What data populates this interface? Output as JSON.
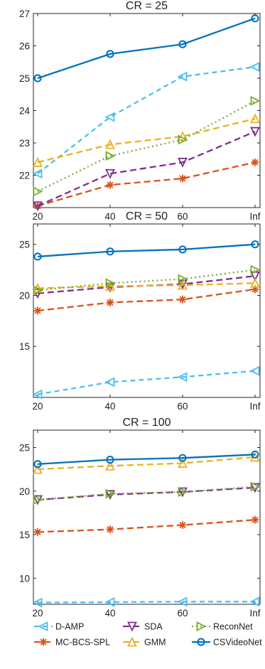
{
  "chart_data": [
    {
      "type": "line",
      "title": "CR = 25",
      "categories": [
        "20",
        "40",
        "60",
        "Inf"
      ],
      "ylim": [
        21,
        27
      ],
      "yticks": [
        22,
        23,
        24,
        25,
        26,
        27
      ],
      "grid": false,
      "series": [
        {
          "name": "D-AMP",
          "values": [
            22.05,
            23.8,
            25.05,
            25.35
          ]
        },
        {
          "name": "MC-BCS-SPL",
          "values": [
            21.05,
            21.7,
            21.9,
            22.4
          ]
        },
        {
          "name": "SDA",
          "values": [
            21.05,
            22.05,
            22.4,
            23.35
          ]
        },
        {
          "name": "GMM",
          "values": [
            22.4,
            22.95,
            23.2,
            23.75
          ]
        },
        {
          "name": "ReconNet",
          "values": [
            21.5,
            22.6,
            23.1,
            24.3
          ]
        },
        {
          "name": "CSVideoNet",
          "values": [
            25.0,
            25.75,
            26.05,
            26.85
          ]
        }
      ]
    },
    {
      "type": "line",
      "title": "CR = 50",
      "categories": [
        "20",
        "40",
        "60",
        "Inf"
      ],
      "ylim": [
        10,
        27
      ],
      "yticks": [
        15,
        20,
        25
      ],
      "grid": false,
      "series": [
        {
          "name": "D-AMP",
          "values": [
            10.3,
            11.5,
            12.0,
            12.6
          ]
        },
        {
          "name": "MC-BCS-SPL",
          "values": [
            18.5,
            19.3,
            19.6,
            20.6
          ]
        },
        {
          "name": "SDA",
          "values": [
            20.2,
            20.8,
            21.1,
            21.9
          ]
        },
        {
          "name": "GMM",
          "values": [
            20.7,
            20.9,
            21.0,
            21.2
          ]
        },
        {
          "name": "ReconNet",
          "values": [
            20.5,
            21.2,
            21.6,
            22.5
          ]
        },
        {
          "name": "CSVideoNet",
          "values": [
            23.8,
            24.3,
            24.5,
            25.0
          ]
        }
      ]
    },
    {
      "type": "line",
      "title": "CR = 100",
      "categories": [
        "20",
        "40",
        "60",
        "Inf"
      ],
      "ylim": [
        7,
        27
      ],
      "yticks": [
        10,
        15,
        20,
        25
      ],
      "grid": false,
      "series": [
        {
          "name": "D-AMP",
          "values": [
            7.2,
            7.25,
            7.3,
            7.3
          ]
        },
        {
          "name": "MC-BCS-SPL",
          "values": [
            15.3,
            15.6,
            16.1,
            16.7
          ]
        },
        {
          "name": "SDA",
          "values": [
            19.0,
            19.6,
            19.9,
            20.4
          ]
        },
        {
          "name": "GMM",
          "values": [
            22.5,
            22.9,
            23.2,
            23.9
          ]
        },
        {
          "name": "ReconNet",
          "values": [
            19.0,
            19.7,
            19.9,
            20.5
          ]
        },
        {
          "name": "CSVideoNet",
          "values": [
            23.1,
            23.6,
            23.8,
            24.2
          ]
        }
      ]
    }
  ],
  "styles": {
    "D-AMP": {
      "color": "#4DBEEE",
      "dash": "7,5",
      "marker": "triangle-left"
    },
    "MC-BCS-SPL": {
      "color": "#D95319",
      "dash": "9,5",
      "marker": "asterisk"
    },
    "SDA": {
      "color": "#7E2F8E",
      "dash": "9,5",
      "marker": "triangle-down"
    },
    "GMM": {
      "color": "#EDB120",
      "dash": "9,5",
      "marker": "triangle-up"
    },
    "ReconNet": {
      "color": "#77AC30",
      "dash": "2,4",
      "marker": "triangle-right"
    },
    "CSVideoNet": {
      "color": "#0072BD",
      "dash": "",
      "marker": "circle"
    }
  },
  "legend": {
    "placement": "bottom",
    "entries": [
      "D-AMP",
      "SDA",
      "ReconNet",
      "MC-BCS-SPL",
      "GMM",
      "CSVideoNet"
    ]
  }
}
